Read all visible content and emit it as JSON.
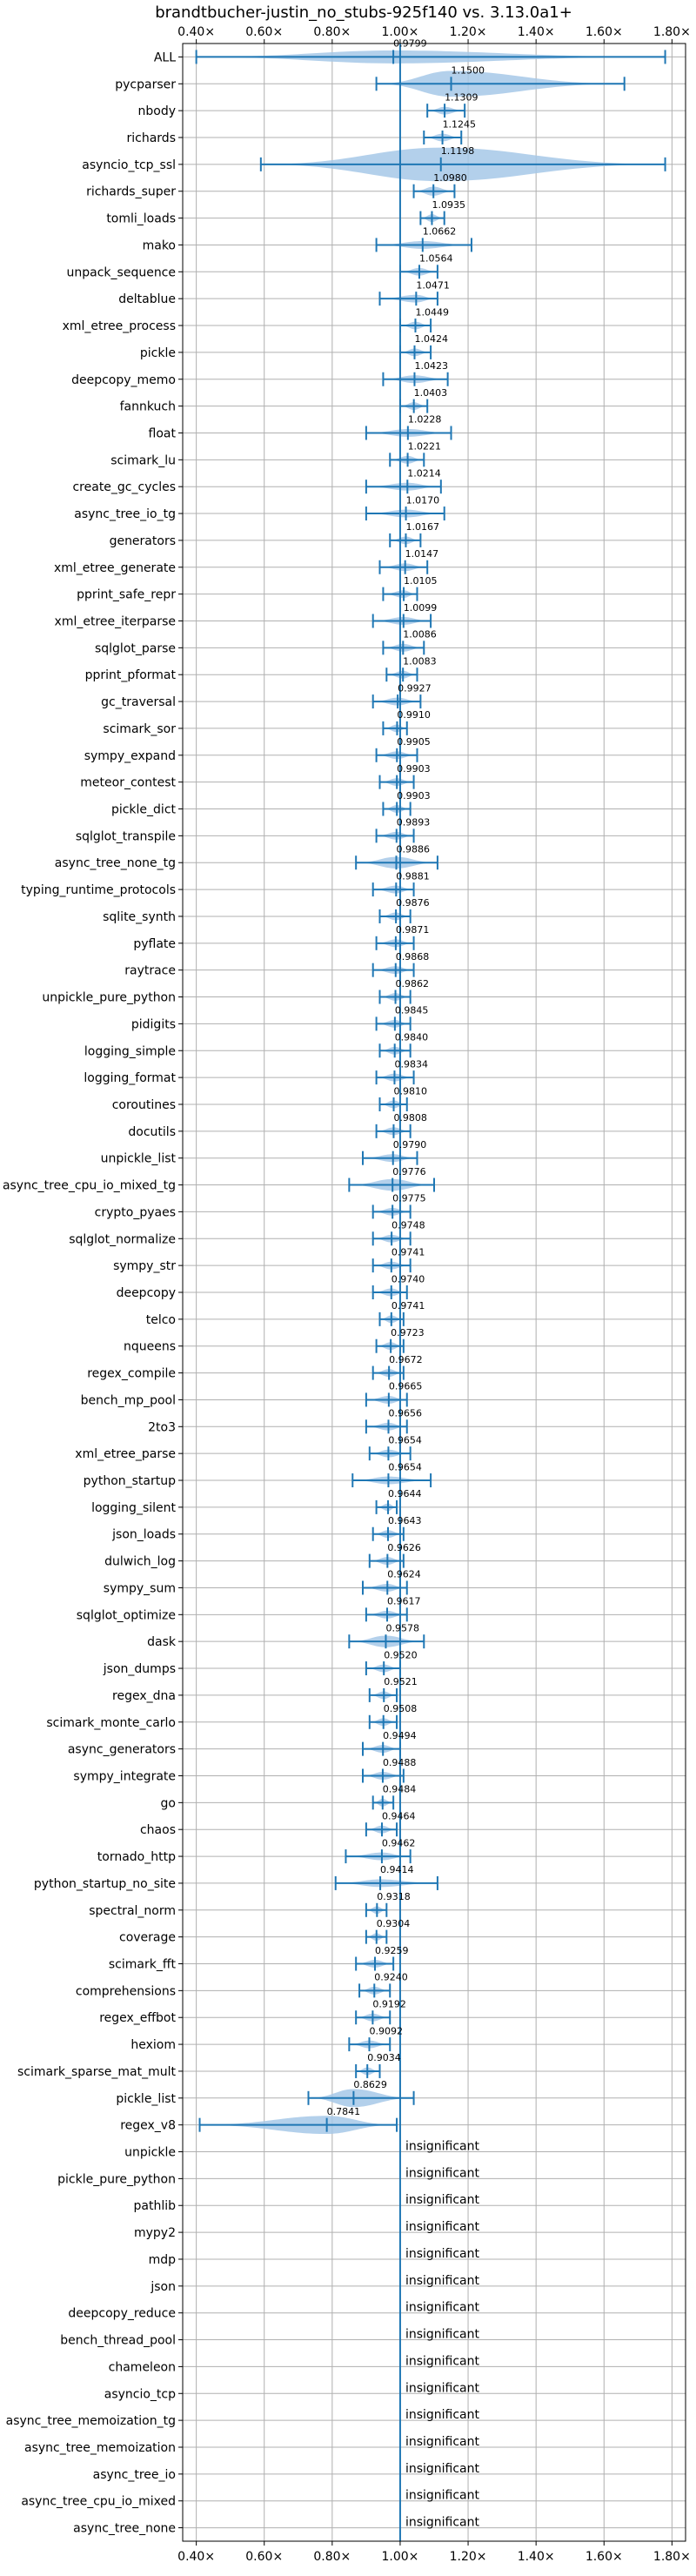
{
  "chart_data": {
    "type": "violin",
    "title": "brandtbucher-justin_no_stubs-925f140 vs. 3.13.0a1+",
    "xlim": [
      0.36,
      1.84
    ],
    "xticks": [
      0.4,
      0.6,
      0.8,
      1.0,
      1.2,
      1.4,
      1.6,
      1.8
    ],
    "xtick_labels": [
      "0.40×",
      "0.60×",
      "0.80×",
      "1.00×",
      "1.20×",
      "1.40×",
      "1.60×",
      "1.80×"
    ],
    "grid": true,
    "reference_line": 1.0,
    "colors": {
      "violin": "#a6c8e8",
      "marker": "#1f77b4",
      "refline": "#1f77b4",
      "grid": "#b0b0b0"
    },
    "categories": [
      {
        "name": "ALL",
        "label": "0.9799",
        "mean": 0.9799,
        "min": 0.4,
        "max": 1.78,
        "width": 0.1
      },
      {
        "name": "pycparser",
        "label": "1.1500",
        "mean": 1.15,
        "min": 0.93,
        "max": 1.66,
        "width": 0.2
      },
      {
        "name": "nbody",
        "label": "1.1309",
        "mean": 1.1309,
        "min": 1.08,
        "max": 1.19,
        "width": 0.06
      },
      {
        "name": "richards",
        "label": "1.1245",
        "mean": 1.1245,
        "min": 1.07,
        "max": 1.18,
        "width": 0.06
      },
      {
        "name": "asyncio_tcp_ssl",
        "label": "1.1198",
        "mean": 1.1198,
        "min": 0.59,
        "max": 1.78,
        "width": 0.26
      },
      {
        "name": "richards_super",
        "label": "1.0980",
        "mean": 1.098,
        "min": 1.04,
        "max": 1.16,
        "width": 0.07
      },
      {
        "name": "tomli_loads",
        "label": "1.0935",
        "mean": 1.0935,
        "min": 1.06,
        "max": 1.13,
        "width": 0.06
      },
      {
        "name": "mako",
        "label": "1.0662",
        "mean": 1.0662,
        "min": 0.93,
        "max": 1.21,
        "width": 0.06
      },
      {
        "name": "unpack_sequence",
        "label": "1.0564",
        "mean": 1.0564,
        "min": 1.0,
        "max": 1.11,
        "width": 0.06
      },
      {
        "name": "deltablue",
        "label": "1.0471",
        "mean": 1.0471,
        "min": 0.94,
        "max": 1.11,
        "width": 0.06
      },
      {
        "name": "xml_etree_process",
        "label": "1.0449",
        "mean": 1.0449,
        "min": 1.0,
        "max": 1.09,
        "width": 0.06
      },
      {
        "name": "pickle",
        "label": "1.0424",
        "mean": 1.0424,
        "min": 1.0,
        "max": 1.09,
        "width": 0.06
      },
      {
        "name": "deepcopy_memo",
        "label": "1.0423",
        "mean": 1.0423,
        "min": 0.95,
        "max": 1.14,
        "width": 0.06
      },
      {
        "name": "fannkuch",
        "label": "1.0403",
        "mean": 1.0403,
        "min": 1.0,
        "max": 1.08,
        "width": 0.06
      },
      {
        "name": "float",
        "label": "1.0228",
        "mean": 1.0228,
        "min": 0.9,
        "max": 1.15,
        "width": 0.06
      },
      {
        "name": "scimark_lu",
        "label": "1.0221",
        "mean": 1.0221,
        "min": 0.97,
        "max": 1.07,
        "width": 0.06
      },
      {
        "name": "create_gc_cycles",
        "label": "1.0214",
        "mean": 1.0214,
        "min": 0.9,
        "max": 1.12,
        "width": 0.06
      },
      {
        "name": "async_tree_io_tg",
        "label": "1.0170",
        "mean": 1.017,
        "min": 0.9,
        "max": 1.13,
        "width": 0.06
      },
      {
        "name": "generators",
        "label": "1.0167",
        "mean": 1.0167,
        "min": 0.97,
        "max": 1.06,
        "width": 0.06
      },
      {
        "name": "xml_etree_generate",
        "label": "1.0147",
        "mean": 1.0147,
        "min": 0.94,
        "max": 1.08,
        "width": 0.06
      },
      {
        "name": "pprint_safe_repr",
        "label": "1.0105",
        "mean": 1.0105,
        "min": 0.95,
        "max": 1.05,
        "width": 0.06
      },
      {
        "name": "xml_etree_iterparse",
        "label": "1.0099",
        "mean": 1.0099,
        "min": 0.92,
        "max": 1.09,
        "width": 0.06
      },
      {
        "name": "sqlglot_parse",
        "label": "1.0086",
        "mean": 1.0086,
        "min": 0.95,
        "max": 1.07,
        "width": 0.06
      },
      {
        "name": "pprint_pformat",
        "label": "1.0083",
        "mean": 1.0083,
        "min": 0.96,
        "max": 1.05,
        "width": 0.06
      },
      {
        "name": "gc_traversal",
        "label": "0.9927",
        "mean": 0.9927,
        "min": 0.92,
        "max": 1.06,
        "width": 0.06
      },
      {
        "name": "scimark_sor",
        "label": "0.9910",
        "mean": 0.991,
        "min": 0.95,
        "max": 1.02,
        "width": 0.06
      },
      {
        "name": "sympy_expand",
        "label": "0.9905",
        "mean": 0.9905,
        "min": 0.93,
        "max": 1.05,
        "width": 0.06
      },
      {
        "name": "meteor_contest",
        "label": "0.9903",
        "mean": 0.9903,
        "min": 0.94,
        "max": 1.04,
        "width": 0.06
      },
      {
        "name": "pickle_dict",
        "label": "0.9903",
        "mean": 0.9903,
        "min": 0.95,
        "max": 1.03,
        "width": 0.06
      },
      {
        "name": "sqlglot_transpile",
        "label": "0.9893",
        "mean": 0.9893,
        "min": 0.93,
        "max": 1.04,
        "width": 0.06
      },
      {
        "name": "async_tree_none_tg",
        "label": "0.9886",
        "mean": 0.9886,
        "min": 0.87,
        "max": 1.11,
        "width": 0.09
      },
      {
        "name": "typing_runtime_protocols",
        "label": "0.9881",
        "mean": 0.9881,
        "min": 0.92,
        "max": 1.04,
        "width": 0.06
      },
      {
        "name": "sqlite_synth",
        "label": "0.9876",
        "mean": 0.9876,
        "min": 0.94,
        "max": 1.03,
        "width": 0.06
      },
      {
        "name": "pyflate",
        "label": "0.9871",
        "mean": 0.9871,
        "min": 0.93,
        "max": 1.04,
        "width": 0.06
      },
      {
        "name": "raytrace",
        "label": "0.9868",
        "mean": 0.9868,
        "min": 0.92,
        "max": 1.04,
        "width": 0.06
      },
      {
        "name": "unpickle_pure_python",
        "label": "0.9862",
        "mean": 0.9862,
        "min": 0.94,
        "max": 1.03,
        "width": 0.06
      },
      {
        "name": "pidigits",
        "label": "0.9845",
        "mean": 0.9845,
        "min": 0.93,
        "max": 1.03,
        "width": 0.06
      },
      {
        "name": "logging_simple",
        "label": "0.9840",
        "mean": 0.984,
        "min": 0.94,
        "max": 1.03,
        "width": 0.06
      },
      {
        "name": "logging_format",
        "label": "0.9834",
        "mean": 0.9834,
        "min": 0.93,
        "max": 1.04,
        "width": 0.06
      },
      {
        "name": "coroutines",
        "label": "0.9810",
        "mean": 0.981,
        "min": 0.94,
        "max": 1.02,
        "width": 0.06
      },
      {
        "name": "docutils",
        "label": "0.9808",
        "mean": 0.9808,
        "min": 0.93,
        "max": 1.03,
        "width": 0.06
      },
      {
        "name": "unpickle_list",
        "label": "0.9790",
        "mean": 0.979,
        "min": 0.89,
        "max": 1.05,
        "width": 0.06
      },
      {
        "name": "async_tree_cpu_io_mixed_tg",
        "label": "0.9776",
        "mean": 0.9776,
        "min": 0.85,
        "max": 1.1,
        "width": 0.09
      },
      {
        "name": "crypto_pyaes",
        "label": "0.9775",
        "mean": 0.9775,
        "min": 0.92,
        "max": 1.03,
        "width": 0.06
      },
      {
        "name": "sqlglot_normalize",
        "label": "0.9748",
        "mean": 0.9748,
        "min": 0.92,
        "max": 1.03,
        "width": 0.06
      },
      {
        "name": "sympy_str",
        "label": "0.9741",
        "mean": 0.9741,
        "min": 0.92,
        "max": 1.03,
        "width": 0.06
      },
      {
        "name": "deepcopy",
        "label": "0.9740",
        "mean": 0.974,
        "min": 0.92,
        "max": 1.02,
        "width": 0.06
      },
      {
        "name": "telco",
        "label": "0.9741",
        "mean": 0.9741,
        "min": 0.94,
        "max": 1.01,
        "width": 0.06
      },
      {
        "name": "nqueens",
        "label": "0.9723",
        "mean": 0.9723,
        "min": 0.93,
        "max": 1.01,
        "width": 0.06
      },
      {
        "name": "regex_compile",
        "label": "0.9672",
        "mean": 0.9672,
        "min": 0.92,
        "max": 1.01,
        "width": 0.06
      },
      {
        "name": "bench_mp_pool",
        "label": "0.9665",
        "mean": 0.9665,
        "min": 0.9,
        "max": 1.02,
        "width": 0.06
      },
      {
        "name": "2to3",
        "label": "0.9656",
        "mean": 0.9656,
        "min": 0.9,
        "max": 1.02,
        "width": 0.06
      },
      {
        "name": "xml_etree_parse",
        "label": "0.9654",
        "mean": 0.9654,
        "min": 0.91,
        "max": 1.03,
        "width": 0.06
      },
      {
        "name": "python_startup",
        "label": "0.9654",
        "mean": 0.9654,
        "min": 0.86,
        "max": 1.09,
        "width": 0.06
      },
      {
        "name": "logging_silent",
        "label": "0.9644",
        "mean": 0.9644,
        "min": 0.93,
        "max": 0.99,
        "width": 0.06
      },
      {
        "name": "json_loads",
        "label": "0.9643",
        "mean": 0.9643,
        "min": 0.92,
        "max": 1.01,
        "width": 0.06
      },
      {
        "name": "dulwich_log",
        "label": "0.9626",
        "mean": 0.9626,
        "min": 0.91,
        "max": 1.01,
        "width": 0.06
      },
      {
        "name": "sympy_sum",
        "label": "0.9624",
        "mean": 0.9624,
        "min": 0.89,
        "max": 1.02,
        "width": 0.06
      },
      {
        "name": "sqlglot_optimize",
        "label": "0.9617",
        "mean": 0.9617,
        "min": 0.9,
        "max": 1.02,
        "width": 0.06
      },
      {
        "name": "dask",
        "label": "0.9578",
        "mean": 0.9578,
        "min": 0.85,
        "max": 1.07,
        "width": 0.09
      },
      {
        "name": "json_dumps",
        "label": "0.9520",
        "mean": 0.952,
        "min": 0.9,
        "max": 1.0,
        "width": 0.06
      },
      {
        "name": "regex_dna",
        "label": "0.9521",
        "mean": 0.9521,
        "min": 0.91,
        "max": 0.99,
        "width": 0.06
      },
      {
        "name": "scimark_monte_carlo",
        "label": "0.9508",
        "mean": 0.9508,
        "min": 0.91,
        "max": 0.99,
        "width": 0.06
      },
      {
        "name": "async_generators",
        "label": "0.9494",
        "mean": 0.9494,
        "min": 0.89,
        "max": 1.0,
        "width": 0.06
      },
      {
        "name": "sympy_integrate",
        "label": "0.9488",
        "mean": 0.9488,
        "min": 0.89,
        "max": 1.01,
        "width": 0.06
      },
      {
        "name": "go",
        "label": "0.9484",
        "mean": 0.9484,
        "min": 0.92,
        "max": 0.98,
        "width": 0.06
      },
      {
        "name": "chaos",
        "label": "0.9464",
        "mean": 0.9464,
        "min": 0.9,
        "max": 0.99,
        "width": 0.06
      },
      {
        "name": "tornado_http",
        "label": "0.9462",
        "mean": 0.9462,
        "min": 0.84,
        "max": 1.03,
        "width": 0.06
      },
      {
        "name": "python_startup_no_site",
        "label": "0.9414",
        "mean": 0.9414,
        "min": 0.81,
        "max": 1.11,
        "width": 0.06
      },
      {
        "name": "spectral_norm",
        "label": "0.9318",
        "mean": 0.9318,
        "min": 0.9,
        "max": 0.96,
        "width": 0.06
      },
      {
        "name": "coverage",
        "label": "0.9304",
        "mean": 0.9304,
        "min": 0.9,
        "max": 0.96,
        "width": 0.06
      },
      {
        "name": "scimark_fft",
        "label": "0.9259",
        "mean": 0.9259,
        "min": 0.87,
        "max": 0.98,
        "width": 0.06
      },
      {
        "name": "comprehensions",
        "label": "0.9240",
        "mean": 0.924,
        "min": 0.88,
        "max": 0.97,
        "width": 0.06
      },
      {
        "name": "regex_effbot",
        "label": "0.9192",
        "mean": 0.9192,
        "min": 0.87,
        "max": 0.97,
        "width": 0.06
      },
      {
        "name": "hexiom",
        "label": "0.9092",
        "mean": 0.9092,
        "min": 0.85,
        "max": 0.97,
        "width": 0.06
      },
      {
        "name": "scimark_sparse_mat_mult",
        "label": "0.9034",
        "mean": 0.9034,
        "min": 0.87,
        "max": 0.94,
        "width": 0.06
      },
      {
        "name": "pickle_list",
        "label": "0.8629",
        "mean": 0.8629,
        "min": 0.73,
        "max": 1.04,
        "width": 0.14
      },
      {
        "name": "regex_v8",
        "label": "0.7841",
        "mean": 0.7841,
        "min": 0.41,
        "max": 0.99,
        "width": 0.14
      },
      {
        "name": "unpickle",
        "label": "insignificant"
      },
      {
        "name": "pickle_pure_python",
        "label": "insignificant"
      },
      {
        "name": "pathlib",
        "label": "insignificant"
      },
      {
        "name": "mypy2",
        "label": "insignificant"
      },
      {
        "name": "mdp",
        "label": "insignificant"
      },
      {
        "name": "json",
        "label": "insignificant"
      },
      {
        "name": "deepcopy_reduce",
        "label": "insignificant"
      },
      {
        "name": "bench_thread_pool",
        "label": "insignificant"
      },
      {
        "name": "chameleon",
        "label": "insignificant"
      },
      {
        "name": "asyncio_tcp",
        "label": "insignificant"
      },
      {
        "name": "async_tree_memoization_tg",
        "label": "insignificant"
      },
      {
        "name": "async_tree_memoization",
        "label": "insignificant"
      },
      {
        "name": "async_tree_io",
        "label": "insignificant"
      },
      {
        "name": "async_tree_cpu_io_mixed",
        "label": "insignificant"
      },
      {
        "name": "async_tree_none",
        "label": "insignificant"
      }
    ]
  }
}
